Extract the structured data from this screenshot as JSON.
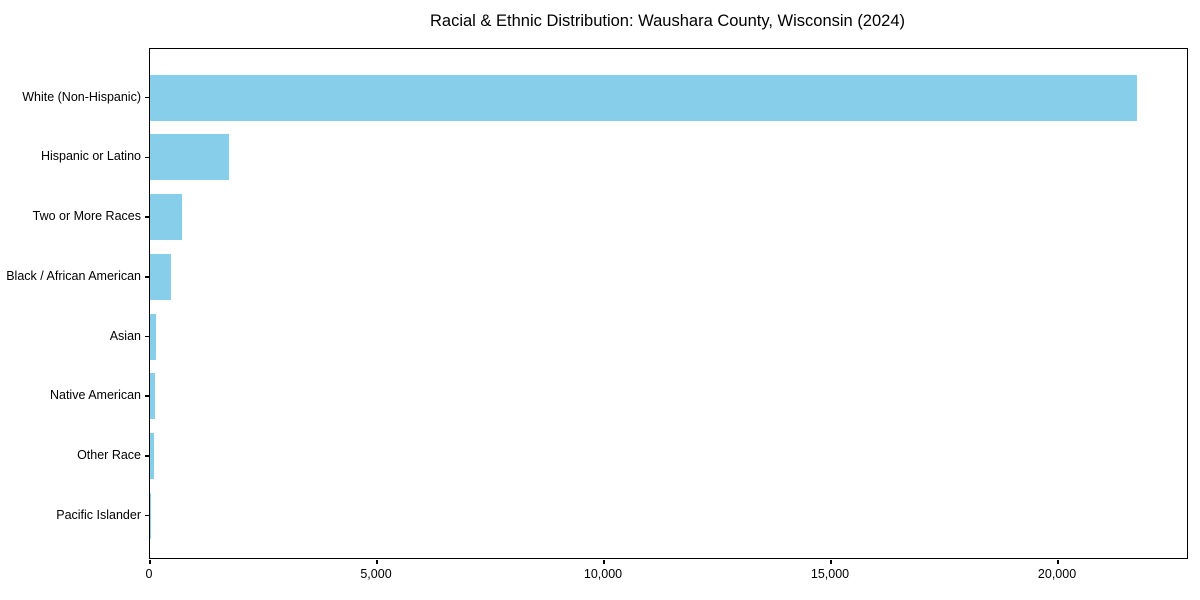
{
  "chart_data": {
    "type": "bar",
    "orientation": "horizontal",
    "title": "Racial & Ethnic Distribution: Waushara County, Wisconsin (2024)",
    "categories": [
      "White (Non-Hispanic)",
      "Hispanic or Latino",
      "Two or More Races",
      "Black / African American",
      "Asian",
      "Native American",
      "Other Race",
      "Pacific Islander"
    ],
    "values": [
      21740,
      1730,
      700,
      460,
      125,
      100,
      95,
      10
    ],
    "xlabel": "",
    "ylabel": "",
    "xlim": [
      0,
      22840
    ],
    "x_ticks": [
      0,
      5000,
      10000,
      15000,
      20000
    ],
    "x_tick_labels": [
      "0",
      "5,000",
      "10,000",
      "15,000",
      "20,000"
    ],
    "bar_color": "#87CEEB",
    "axis_color": "#000000",
    "background_color": "#ffffff",
    "grid": false,
    "legend": null
  }
}
